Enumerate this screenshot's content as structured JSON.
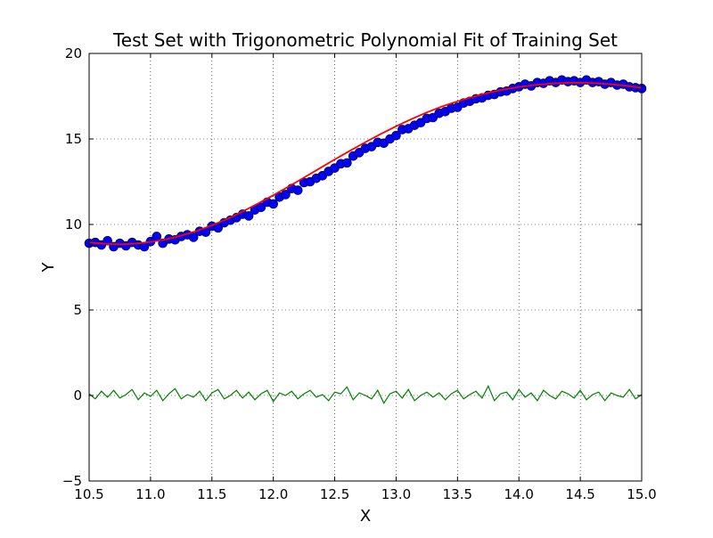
{
  "chart_data": {
    "type": "scatter",
    "title": "Test Set with Trigonometric Polynomial Fit of Training Set",
    "xlabel": "X",
    "ylabel": "Y",
    "xlim": [
      10.5,
      15.0
    ],
    "ylim": [
      -5,
      20
    ],
    "xticks": [
      10.5,
      11.0,
      11.5,
      12.0,
      12.5,
      13.0,
      13.5,
      14.0,
      14.5,
      15.0
    ],
    "xtick_labels": [
      "10.5",
      "11.0",
      "11.5",
      "12.0",
      "12.5",
      "13.0",
      "13.5",
      "14.0",
      "14.5",
      "15.0"
    ],
    "yticks": [
      -5,
      0,
      5,
      10,
      15,
      20
    ],
    "ytick_labels": [
      "−5",
      "0",
      "5",
      "10",
      "15",
      "20"
    ],
    "grid": true,
    "grid_style": "dotted",
    "legend": "none",
    "colors": {
      "points": "#0000ff",
      "fit": "#ff0000",
      "residual": "#007f00"
    },
    "series": [
      {
        "kind": "scatter",
        "color": "#0000ff",
        "x": [
          10.5,
          10.55,
          10.6,
          10.65,
          10.7,
          10.75,
          10.8,
          10.85,
          10.9,
          10.95,
          11.0,
          11.05,
          11.1,
          11.15,
          11.2,
          11.25,
          11.3,
          11.35,
          11.4,
          11.45,
          11.5,
          11.55,
          11.6,
          11.65,
          11.7,
          11.75,
          11.8,
          11.85,
          11.9,
          11.95,
          12.0,
          12.05,
          12.1,
          12.15,
          12.2,
          12.25,
          12.3,
          12.35,
          12.4,
          12.45,
          12.5,
          12.55,
          12.6,
          12.65,
          12.7,
          12.75,
          12.8,
          12.85,
          12.9,
          12.95,
          13.0,
          13.05,
          13.1,
          13.15,
          13.2,
          13.25,
          13.3,
          13.35,
          13.4,
          13.45,
          13.5,
          13.55,
          13.6,
          13.65,
          13.7,
          13.75,
          13.8,
          13.85,
          13.9,
          13.95,
          14.0,
          14.05,
          14.1,
          14.15,
          14.2,
          14.25,
          14.3,
          14.35,
          14.4,
          14.45,
          14.5,
          14.55,
          14.6,
          14.65,
          14.7,
          14.75,
          14.8,
          14.85,
          14.9,
          14.95,
          15.0
        ],
        "y": [
          8.9,
          8.95,
          8.8,
          9.05,
          8.7,
          8.9,
          8.75,
          8.95,
          8.8,
          8.7,
          9.0,
          9.3,
          8.9,
          9.15,
          9.1,
          9.3,
          9.4,
          9.25,
          9.6,
          9.55,
          9.9,
          9.8,
          10.1,
          10.25,
          10.4,
          10.6,
          10.5,
          10.85,
          11.0,
          11.3,
          11.2,
          11.6,
          11.75,
          12.1,
          12.0,
          12.45,
          12.5,
          12.7,
          12.85,
          13.1,
          13.3,
          13.55,
          13.6,
          14.0,
          14.2,
          14.45,
          14.55,
          14.8,
          14.75,
          15.0,
          15.2,
          15.55,
          15.6,
          15.8,
          15.95,
          16.2,
          16.25,
          16.5,
          16.6,
          16.8,
          16.85,
          17.1,
          17.2,
          17.35,
          17.4,
          17.55,
          17.6,
          17.75,
          17.8,
          17.95,
          18.05,
          18.2,
          18.1,
          18.3,
          18.25,
          18.4,
          18.3,
          18.45,
          18.35,
          18.4,
          18.3,
          18.45,
          18.3,
          18.35,
          18.2,
          18.3,
          18.15,
          18.2,
          18.05,
          18.0,
          17.95
        ]
      },
      {
        "kind": "line",
        "color": "#ff0000",
        "x": [
          10.5,
          10.625,
          10.75,
          10.875,
          11.0,
          11.125,
          11.25,
          11.375,
          11.5,
          11.625,
          11.75,
          11.875,
          12.0,
          12.125,
          12.25,
          12.375,
          12.5,
          12.625,
          12.75,
          12.875,
          13.0,
          13.125,
          13.25,
          13.375,
          13.5,
          13.625,
          13.75,
          13.875,
          14.0,
          14.125,
          14.25,
          14.375,
          14.5,
          14.625,
          14.75,
          14.875,
          15.0
        ],
        "y": [
          8.95,
          8.87,
          8.84,
          8.88,
          8.98,
          9.13,
          9.35,
          9.62,
          9.95,
          10.33,
          10.76,
          11.22,
          11.71,
          12.22,
          12.74,
          13.27,
          13.8,
          14.31,
          14.81,
          15.29,
          15.74,
          16.16,
          16.55,
          16.9,
          17.2,
          17.47,
          17.7,
          17.89,
          18.04,
          18.15,
          18.23,
          18.28,
          18.29,
          18.26,
          18.2,
          18.11,
          17.99
        ]
      },
      {
        "kind": "line",
        "color": "#007f00",
        "x": [
          10.5,
          10.55,
          10.6,
          10.65,
          10.7,
          10.75,
          10.8,
          10.85,
          10.9,
          10.95,
          11.0,
          11.05,
          11.1,
          11.15,
          11.2,
          11.25,
          11.3,
          11.35,
          11.4,
          11.45,
          11.5,
          11.55,
          11.6,
          11.65,
          11.7,
          11.75,
          11.8,
          11.85,
          11.9,
          11.95,
          12.0,
          12.05,
          12.1,
          12.15,
          12.2,
          12.25,
          12.3,
          12.35,
          12.4,
          12.45,
          12.5,
          12.55,
          12.6,
          12.65,
          12.7,
          12.75,
          12.8,
          12.85,
          12.9,
          12.95,
          13.0,
          13.05,
          13.1,
          13.15,
          13.2,
          13.25,
          13.3,
          13.35,
          13.4,
          13.45,
          13.5,
          13.55,
          13.6,
          13.65,
          13.7,
          13.75,
          13.8,
          13.85,
          13.9,
          13.95,
          14.0,
          14.05,
          14.1,
          14.15,
          14.2,
          14.25,
          14.3,
          14.35,
          14.4,
          14.45,
          14.5,
          14.55,
          14.6,
          14.65,
          14.7,
          14.75,
          14.8,
          14.85,
          14.9,
          14.95,
          15.0
        ],
        "y": [
          0.1,
          -0.2,
          0.25,
          -0.1,
          0.3,
          -0.15,
          0.05,
          0.35,
          -0.25,
          0.15,
          -0.05,
          0.3,
          -0.3,
          0.1,
          0.4,
          -0.2,
          0.05,
          -0.1,
          0.25,
          -0.3,
          0.15,
          0.35,
          -0.2,
          0.0,
          0.3,
          -0.15,
          0.2,
          -0.25,
          0.1,
          0.3,
          -0.35,
          0.15,
          0.0,
          0.25,
          -0.2,
          0.1,
          0.3,
          -0.1,
          0.05,
          -0.3,
          0.2,
          0.1,
          0.5,
          -0.25,
          0.15,
          0.0,
          -0.2,
          0.3,
          -0.45,
          0.1,
          0.25,
          -0.15,
          0.35,
          -0.3,
          0.0,
          0.2,
          -0.1,
          0.15,
          -0.25,
          0.1,
          0.3,
          -0.2,
          0.05,
          0.25,
          -0.15,
          0.55,
          -0.3,
          0.1,
          0.2,
          -0.25,
          0.35,
          -0.1,
          0.15,
          -0.3,
          0.3,
          0.0,
          -0.2,
          0.25,
          0.1,
          -0.15,
          0.3,
          -0.25,
          0.05,
          0.2,
          -0.3,
          0.15,
          0.0,
          -0.1,
          0.35,
          -0.2,
          0.05
        ]
      }
    ]
  }
}
